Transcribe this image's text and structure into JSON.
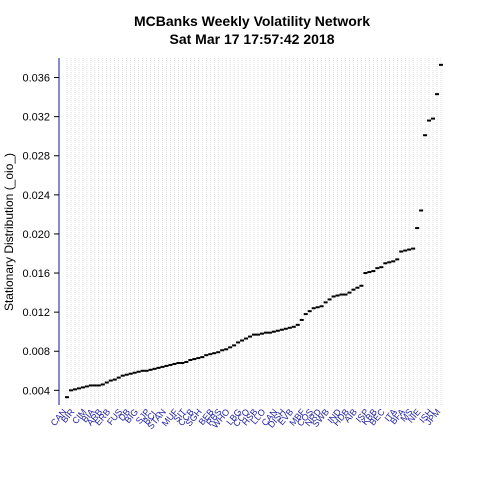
{
  "chart_data": {
    "type": "scatter",
    "title": "MCBanks  Weekly Volatility Network",
    "subtitle": "Sat Mar 17 17:57:42 2018",
    "xlabel": "",
    "ylabel": "Stationary Distribution (_oio_)",
    "ylim": [
      0.0025,
      0.038
    ],
    "yticks": [
      "0.004",
      "0.008",
      "0.012",
      "0.016",
      "0.020",
      "0.024",
      "0.028",
      "0.032",
      "0.036"
    ],
    "grid": true,
    "x_ticks": [
      "CAN",
      "BIR",
      "CIM",
      "BIA",
      "ARB",
      "ERB",
      "FUS",
      "DB",
      "BIG",
      "SJP",
      "BCL",
      "STAN",
      "MUF",
      "SIT",
      "CCB",
      "SGH",
      "BEB",
      "RBS",
      "WHO",
      "LBG",
      "CCO",
      "HSB",
      "LLO",
      "CAN",
      "DISH",
      "EVB",
      "MBF",
      "COS",
      "NRD",
      "SWB",
      "IND",
      "HDB",
      "AIB",
      "ISP",
      "KBB",
      "BEC",
      "ITA",
      "BFA",
      "MS",
      "NIE",
      "ISH",
      "JPM"
    ],
    "values": [
      0.0033,
      0.004,
      0.0041,
      0.0042,
      0.0043,
      0.0044,
      0.0045,
      0.0045,
      0.0045,
      0.0046,
      0.0048,
      0.005,
      0.0051,
      0.0053,
      0.0055,
      0.0056,
      0.0057,
      0.0058,
      0.0059,
      0.006,
      0.006,
      0.0061,
      0.0062,
      0.0063,
      0.0064,
      0.0065,
      0.0066,
      0.0067,
      0.0068,
      0.0068,
      0.0069,
      0.0071,
      0.0072,
      0.0073,
      0.0074,
      0.0076,
      0.0077,
      0.0078,
      0.0079,
      0.0081,
      0.0082,
      0.0084,
      0.0086,
      0.0089,
      0.0091,
      0.0093,
      0.0095,
      0.0097,
      0.0097,
      0.0098,
      0.0099,
      0.0099,
      0.01,
      0.0101,
      0.0102,
      0.0103,
      0.0104,
      0.0105,
      0.0107,
      0.0112,
      0.0118,
      0.0121,
      0.0124,
      0.0125,
      0.0126,
      0.013,
      0.0133,
      0.0136,
      0.0137,
      0.0138,
      0.0138,
      0.014,
      0.0143,
      0.0145,
      0.0147,
      0.016,
      0.0161,
      0.0162,
      0.0165,
      0.0166,
      0.017,
      0.0171,
      0.0172,
      0.0174,
      0.0182,
      0.0183,
      0.0184,
      0.0185,
      0.0206,
      0.0224,
      0.0301,
      0.0316,
      0.0318,
      0.0343,
      0.0373
    ],
    "colors": {
      "axis": "#3a3aa8",
      "grid": "#c8c8c8",
      "points": "#000000",
      "tick_labels": "#1f1f9f"
    }
  }
}
